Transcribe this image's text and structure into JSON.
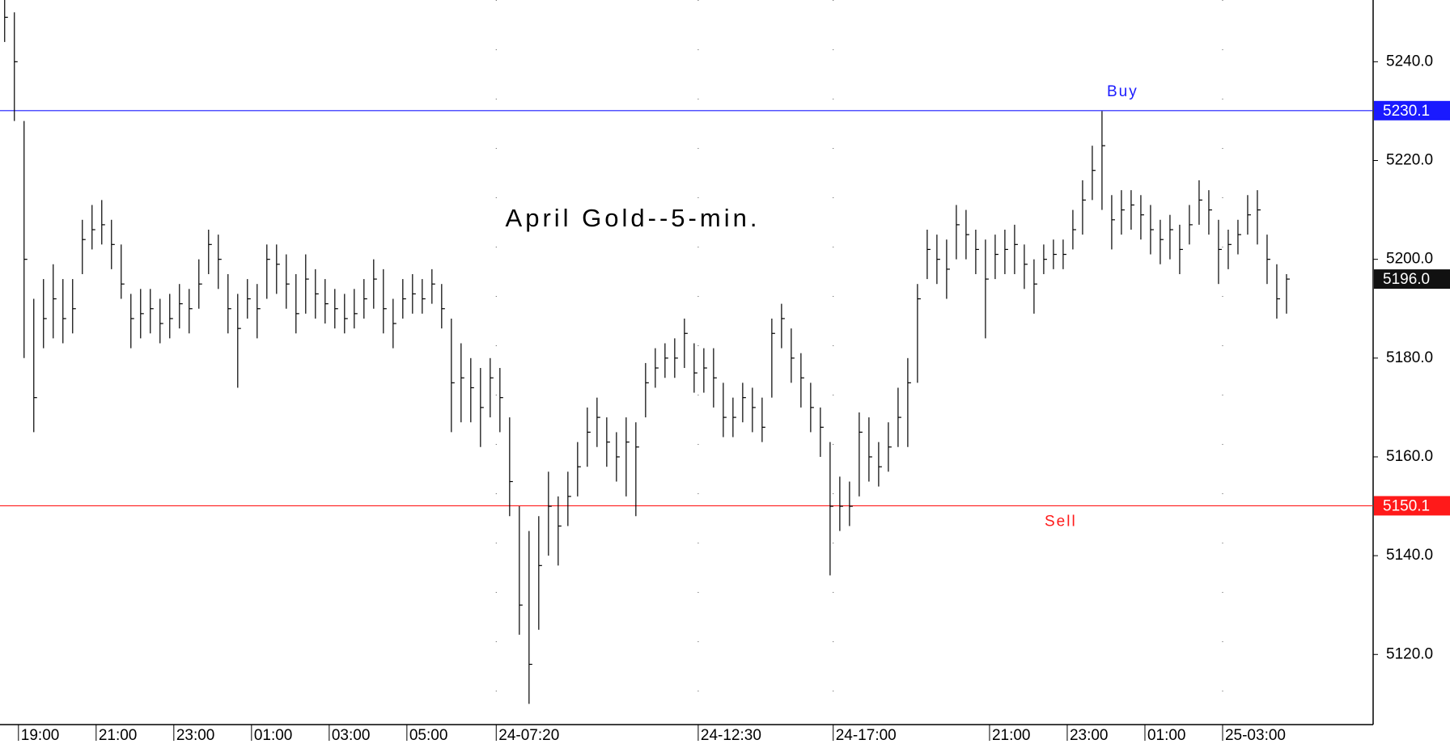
{
  "chart_data": {
    "type": "ohlc",
    "title": "April Gold--5-min.",
    "xlim": [
      0,
      141.4
    ],
    "xticks": [
      {
        "value": 1.9,
        "label": "19:00"
      },
      {
        "value": 9.9,
        "label": "21:00"
      },
      {
        "value": 17.9,
        "label": "23:00"
      },
      {
        "value": 25.9,
        "label": "01:00"
      },
      {
        "value": 33.9,
        "label": "03:00"
      },
      {
        "value": 41.9,
        "label": "05:00"
      },
      {
        "value": 51.1,
        "label": "24-07:20"
      },
      {
        "value": 71.9,
        "label": "24-12:30"
      },
      {
        "value": 85.8,
        "label": "24-17:00"
      },
      {
        "value": 101.9,
        "label": "21:00"
      },
      {
        "value": 109.9,
        "label": "23:00"
      },
      {
        "value": 117.9,
        "label": "01:00"
      },
      {
        "value": 125.9,
        "label": "25-03:00"
      }
    ],
    "ylim": [
      5105.8,
      5252.5
    ],
    "yticks": [
      {
        "value": 5120,
        "label": "5120.0"
      },
      {
        "value": 5140,
        "label": "5140.0"
      },
      {
        "value": 5160,
        "label": "5160.0"
      },
      {
        "value": 5180,
        "label": "5180.0"
      },
      {
        "value": 5200,
        "label": "5200.0"
      },
      {
        "value": 5220,
        "label": "5220.0"
      },
      {
        "value": 5240,
        "label": "5240.0"
      }
    ],
    "levels": [
      {
        "name": "Buy",
        "value": 5230.1,
        "color": "#1a1aff"
      },
      {
        "name": "Sell",
        "value": 5150.1,
        "color": "#ff1a1a"
      }
    ],
    "last": {
      "value": 5196,
      "label": "5196.0"
    },
    "series": [
      {
        "color": "#000000",
        "high": [
          5253,
          5250,
          5228,
          5192,
          5196,
          5199,
          5196,
          5196,
          5208,
          5211,
          5212,
          5208,
          5203,
          5193,
          5194,
          5194,
          5192,
          5193,
          5195,
          5194,
          5200,
          5206,
          5205,
          5197,
          5193,
          5196,
          5195,
          5203,
          5203,
          5201,
          5197,
          5201,
          5198,
          5196,
          5194,
          5193,
          5194,
          5196,
          5200,
          5198,
          5192,
          5196,
          5197,
          5196,
          5198,
          5195,
          5188,
          5183,
          5180,
          5178,
          5180,
          5178,
          5168,
          5150,
          5145,
          5148,
          5157,
          5152,
          5157,
          5163,
          5170,
          5172,
          5168,
          5165,
          5168,
          5167,
          5179,
          5182,
          5183,
          5184,
          5188,
          5183,
          5182,
          5182,
          5175,
          5172,
          5175,
          5174,
          5172,
          5188,
          5191,
          5186,
          5181,
          5175,
          5170,
          5163,
          5156,
          5155,
          5169,
          5168,
          5163,
          5167,
          5174,
          5180,
          5195,
          5206,
          5205,
          5204,
          5211,
          5210,
          5206,
          5204,
          5205,
          5206,
          5207,
          5203,
          5200,
          5203,
          5204,
          5204,
          5210,
          5216,
          5223,
          5230,
          5213,
          5214,
          5214,
          5213,
          5211,
          5208,
          5209,
          5207,
          5211,
          5216,
          5214,
          5208,
          5206,
          5208,
          5213,
          5214,
          5205,
          5199,
          5197
        ],
        "low": [
          5244,
          5228,
          5180,
          5165,
          5182,
          5184,
          5183,
          5185,
          5197,
          5202,
          5203,
          5198,
          5192,
          5182,
          5184,
          5185,
          5183,
          5184,
          5186,
          5185,
          5190,
          5197,
          5194,
          5185,
          5174,
          5188,
          5184,
          5192,
          5193,
          5190,
          5185,
          5189,
          5188,
          5187,
          5186,
          5185,
          5186,
          5188,
          5190,
          5185,
          5182,
          5188,
          5189,
          5189,
          5191,
          5186,
          5165,
          5167,
          5167,
          5162,
          5168,
          5165,
          5148,
          5124,
          5110,
          5125,
          5140,
          5138,
          5146,
          5152,
          5158,
          5162,
          5158,
          5155,
          5152,
          5148,
          5168,
          5174,
          5176,
          5176,
          5178,
          5173,
          5173,
          5170,
          5164,
          5164,
          5167,
          5165,
          5163,
          5172,
          5182,
          5175,
          5170,
          5165,
          5160,
          5136,
          5145,
          5146,
          5152,
          5155,
          5154,
          5157,
          5162,
          5162,
          5175,
          5196,
          5195,
          5192,
          5200,
          5200,
          5197,
          5184,
          5196,
          5197,
          5197,
          5194,
          5189,
          5197,
          5198,
          5198,
          5202,
          5205,
          5212,
          5210,
          5202,
          5205,
          5206,
          5204,
          5201,
          5199,
          5200,
          5197,
          5203,
          5207,
          5205,
          5195,
          5198,
          5201,
          5205,
          5203,
          5195,
          5188,
          5189
        ],
        "close": [
          5249,
          5240,
          5200,
          5172,
          5188,
          5192,
          5188,
          5190,
          5204,
          5206,
          5207,
          5203,
          5195,
          5188,
          5189,
          5190,
          5187,
          5188,
          5191,
          5190,
          5195,
          5203,
          5200,
          5190,
          5186,
          5192,
          5190,
          5200,
          5199,
          5195,
          5189,
          5196,
          5193,
          5191,
          5190,
          5188,
          5189,
          5192,
          5196,
          5190,
          5187,
          5192,
          5193,
          5192,
          5195,
          5190,
          5175,
          5176,
          5174,
          5170,
          5176,
          5172,
          5155,
          5130,
          5118,
          5138,
          5150,
          5146,
          5152,
          5158,
          5165,
          5168,
          5163,
          5160,
          5163,
          5162,
          5175,
          5178,
          5180,
          5180,
          5185,
          5177,
          5178,
          5176,
          5168,
          5168,
          5172,
          5170,
          5166,
          5185,
          5188,
          5180,
          5176,
          5170,
          5166,
          5150,
          5150,
          5150,
          5165,
          5160,
          5158,
          5162,
          5168,
          5175,
          5192,
          5202,
          5200,
          5198,
          5207,
          5205,
          5202,
          5196,
          5201,
          5202,
          5203,
          5199,
          5195,
          5200,
          5201,
          5201,
          5206,
          5212,
          5218,
          5223,
          5208,
          5210,
          5211,
          5209,
          5206,
          5204,
          5206,
          5202,
          5207,
          5212,
          5210,
          5202,
          5203,
          5205,
          5209,
          5210,
          5200,
          5192,
          5196
        ]
      }
    ]
  }
}
